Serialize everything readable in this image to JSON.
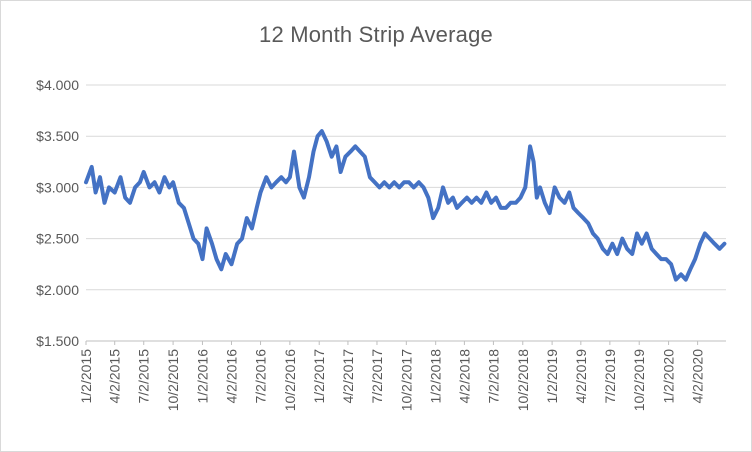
{
  "chart_data": {
    "type": "line",
    "title": "12 Month Strip Average",
    "xlabel": "",
    "ylabel": "",
    "ylim": [
      1.5,
      4.0
    ],
    "yticks": [
      "$1.500",
      "$2.000",
      "$2.500",
      "$3.000",
      "$3.500",
      "$4.000"
    ],
    "ytick_values": [
      1.5,
      2.0,
      2.5,
      3.0,
      3.5,
      4.0
    ],
    "xticks": [
      "1/2/2015",
      "4/2/2015",
      "7/2/2015",
      "10/2/2015",
      "1/2/2016",
      "4/2/2016",
      "7/2/2016",
      "10/2/2016",
      "1/2/2017",
      "4/2/2017",
      "7/2/2017",
      "10/2/2017",
      "1/2/2018",
      "4/2/2018",
      "7/2/2018",
      "10/2/2018",
      "1/2/2019",
      "4/2/2019",
      "7/2/2019",
      "10/2/2019",
      "1/2/2020",
      "4/2/2020"
    ],
    "grid": true,
    "legend": "none",
    "series_color": "#4472c4",
    "series": [
      {
        "x": [
          "2015-01-02",
          "2015-01-20",
          "2015-02-01",
          "2015-02-15",
          "2015-03-01",
          "2015-03-15",
          "2015-04-02",
          "2015-04-20",
          "2015-05-05",
          "2015-05-20",
          "2015-06-05",
          "2015-06-20",
          "2015-07-02",
          "2015-07-20",
          "2015-08-05",
          "2015-08-20",
          "2015-09-05",
          "2015-09-20",
          "2015-10-02",
          "2015-10-20",
          "2015-11-05",
          "2015-11-20",
          "2015-12-05",
          "2015-12-20",
          "2016-01-02",
          "2016-01-15",
          "2016-02-01",
          "2016-02-15",
          "2016-03-01",
          "2016-03-15",
          "2016-04-02",
          "2016-04-20",
          "2016-05-05",
          "2016-05-20",
          "2016-06-05",
          "2016-06-20",
          "2016-07-02",
          "2016-07-20",
          "2016-08-05",
          "2016-08-20",
          "2016-09-05",
          "2016-09-20",
          "2016-10-02",
          "2016-10-15",
          "2016-11-01",
          "2016-11-15",
          "2016-12-01",
          "2016-12-15",
          "2016-12-28",
          "2017-01-10",
          "2017-01-25",
          "2017-02-10",
          "2017-02-25",
          "2017-03-10",
          "2017-03-25",
          "2017-04-10",
          "2017-04-25",
          "2017-05-10",
          "2017-05-25",
          "2017-06-10",
          "2017-06-25",
          "2017-07-10",
          "2017-07-25",
          "2017-08-10",
          "2017-08-25",
          "2017-09-10",
          "2017-09-25",
          "2017-10-10",
          "2017-10-25",
          "2017-11-10",
          "2017-11-25",
          "2017-12-10",
          "2017-12-25",
          "2018-01-10",
          "2018-01-25",
          "2018-02-10",
          "2018-02-25",
          "2018-03-10",
          "2018-03-25",
          "2018-04-10",
          "2018-04-25",
          "2018-05-10",
          "2018-05-25",
          "2018-06-10",
          "2018-06-25",
          "2018-07-10",
          "2018-07-25",
          "2018-08-10",
          "2018-08-25",
          "2018-09-10",
          "2018-09-25",
          "2018-10-10",
          "2018-10-25",
          "2018-11-05",
          "2018-11-15",
          "2018-11-25",
          "2018-12-10",
          "2018-12-25",
          "2019-01-10",
          "2019-01-25",
          "2019-02-10",
          "2019-02-25",
          "2019-03-10",
          "2019-03-25",
          "2019-04-10",
          "2019-04-25",
          "2019-05-10",
          "2019-05-25",
          "2019-06-10",
          "2019-06-25",
          "2019-07-10",
          "2019-07-25",
          "2019-08-10",
          "2019-08-25",
          "2019-09-10",
          "2019-09-25",
          "2019-10-10",
          "2019-10-25",
          "2019-11-10",
          "2019-11-25",
          "2019-12-10",
          "2019-12-25",
          "2020-01-10",
          "2020-01-25",
          "2020-02-10",
          "2020-02-25",
          "2020-03-10",
          "2020-03-25",
          "2020-04-10",
          "2020-04-25",
          "2020-05-10",
          "2020-05-25",
          "2020-06-10",
          "2020-06-25"
        ],
        "values": [
          3.05,
          3.2,
          2.95,
          3.1,
          2.85,
          3.0,
          2.95,
          3.1,
          2.9,
          2.85,
          3.0,
          3.05,
          3.15,
          3.0,
          3.05,
          2.95,
          3.1,
          3.0,
          3.05,
          2.85,
          2.8,
          2.65,
          2.5,
          2.45,
          2.3,
          2.6,
          2.45,
          2.3,
          2.2,
          2.35,
          2.25,
          2.45,
          2.5,
          2.7,
          2.6,
          2.8,
          2.95,
          3.1,
          3.0,
          3.05,
          3.1,
          3.05,
          3.1,
          3.35,
          3.0,
          2.9,
          3.1,
          3.35,
          3.5,
          3.55,
          3.45,
          3.3,
          3.4,
          3.15,
          3.3,
          3.35,
          3.4,
          3.35,
          3.3,
          3.1,
          3.05,
          3.0,
          3.05,
          3.0,
          3.05,
          3.0,
          3.05,
          3.05,
          3.0,
          3.05,
          3.0,
          2.9,
          2.7,
          2.8,
          3.0,
          2.85,
          2.9,
          2.8,
          2.85,
          2.9,
          2.85,
          2.9,
          2.85,
          2.95,
          2.85,
          2.9,
          2.8,
          2.8,
          2.85,
          2.85,
          2.9,
          3.0,
          3.4,
          3.25,
          2.9,
          3.0,
          2.85,
          2.75,
          3.0,
          2.9,
          2.85,
          2.95,
          2.8,
          2.75,
          2.7,
          2.65,
          2.55,
          2.5,
          2.4,
          2.35,
          2.45,
          2.35,
          2.5,
          2.4,
          2.35,
          2.55,
          2.45,
          2.55,
          2.4,
          2.35,
          2.3,
          2.3,
          2.25,
          2.1,
          2.15,
          2.1,
          2.2,
          2.3,
          2.45,
          2.55,
          2.5,
          2.45,
          2.4,
          2.45
        ]
      }
    ]
  }
}
